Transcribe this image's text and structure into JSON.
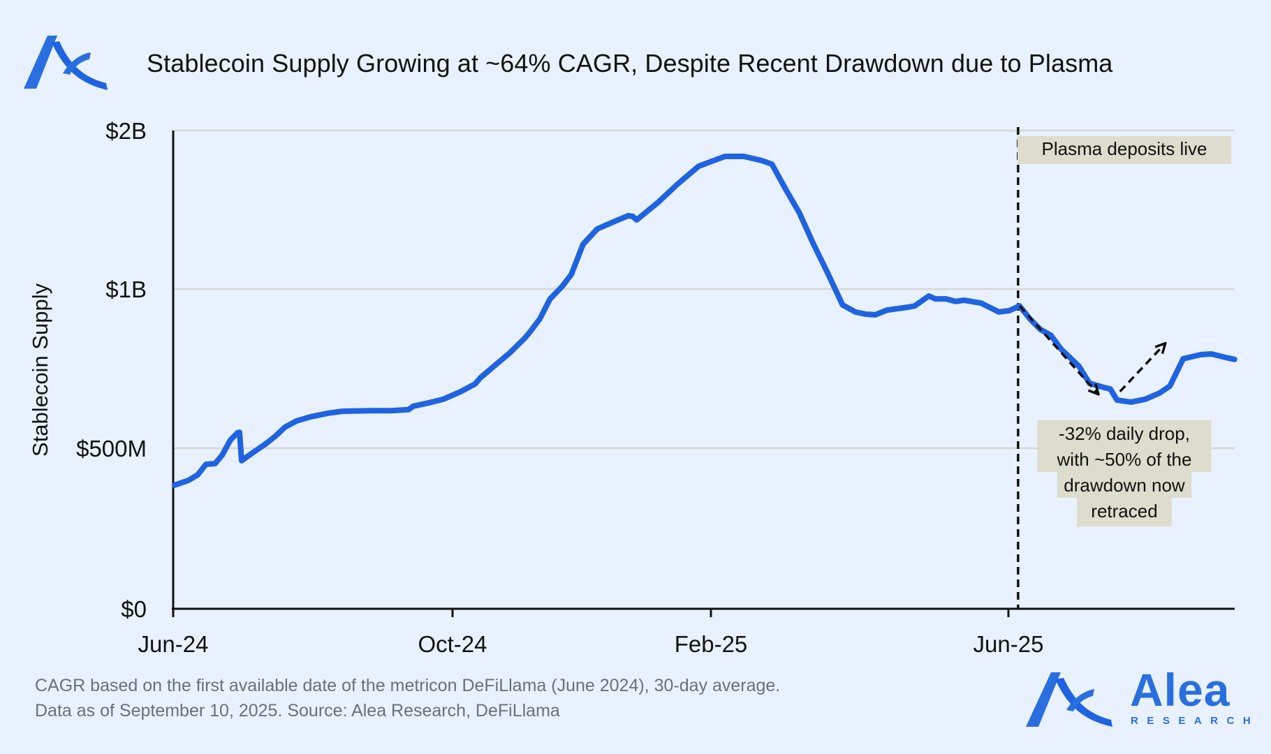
{
  "header": {
    "title": "Stablecoin Supply Growing at ~64% CAGR, Despite Recent Drawdown due to Plasma"
  },
  "footer": {
    "line1": "CAGR based on the first available date of the metricon DeFiLlama (June 2024), 30-day average.",
    "line2": "Data as of September 10, 2025. Source: Alea Research, DeFiLlama"
  },
  "brand": {
    "name": "Alea",
    "subtitle": "RESEARCH",
    "color": "#2a6fe0"
  },
  "colors": {
    "background": "#e8f1fd",
    "line": "#1f63e0",
    "annotation_bg": "#dedccd",
    "gridline": "#d6d6d6"
  },
  "chart_data": {
    "type": "line",
    "title": "Stablecoin Supply Growing at ~64% CAGR, Despite Recent Drawdown due to Plasma",
    "xlabel": "",
    "ylabel": "Stablecoin Supply",
    "x_unit": "months since Jun-2024",
    "y_unit": "USD millions",
    "x_ticks": [
      {
        "value": 0,
        "label": "Jun-24"
      },
      {
        "value": 4,
        "label": "Oct-24"
      },
      {
        "value": 8,
        "label": "Feb-25"
      },
      {
        "value": 12,
        "label": "Jun-25"
      }
    ],
    "y_ticks": [
      {
        "value": 0,
        "label": "$0"
      },
      {
        "value": 500,
        "label": "$500M"
      },
      {
        "value": 1000,
        "label": "$1B"
      },
      {
        "value": 2000,
        "label": "$2B"
      }
    ],
    "y_scale": "piecewise-equal-spaced-ticks",
    "xlim": [
      0,
      15.04
    ],
    "ylim": [
      0,
      2000
    ],
    "grid": "horizontal",
    "legend": "none",
    "series": [
      {
        "name": "Stablecoin Supply",
        "x": [
          0.02,
          0.22,
          0.35,
          0.47,
          0.6,
          0.7,
          0.82,
          0.92,
          0.95,
          0.98,
          1.12,
          1.32,
          1.47,
          1.6,
          1.77,
          1.97,
          2.22,
          2.42,
          2.82,
          3.12,
          3.37,
          3.44,
          3.67,
          3.87,
          4.13,
          4.35,
          4.43,
          4.62,
          4.89,
          5.12,
          5.21,
          5.35,
          5.51,
          5.7,
          5.84,
          6.02,
          6.24,
          6.51,
          6.72,
          6.79,
          6.85,
          7.18,
          7.48,
          7.81,
          8.19,
          8.44,
          8.68,
          8.82,
          9.0,
          9.19,
          9.38,
          9.57,
          9.77,
          9.94,
          10.08,
          10.21,
          10.37,
          10.65,
          10.74,
          10.93,
          11.02,
          11.16,
          11.29,
          11.4,
          11.63,
          11.87,
          12.01,
          12.15,
          12.29,
          12.43,
          12.57,
          12.71,
          12.95,
          13.09,
          13.28,
          13.37,
          13.46,
          13.65,
          13.84,
          14.03,
          14.17,
          14.35,
          14.59,
          14.73,
          14.92,
          15.04
        ],
        "values": [
          385,
          400,
          417,
          450,
          452,
          478,
          526,
          548,
          550,
          461,
          483,
          513,
          539,
          566,
          586,
          599,
          610,
          616,
          618,
          618,
          621,
          632,
          643,
          654,
          678,
          702,
          721,
          754,
          800,
          846,
          868,
          906,
          969,
          1018,
          1093,
          1282,
          1379,
          1427,
          1463,
          1458,
          1436,
          1546,
          1661,
          1775,
          1837,
          1837,
          1811,
          1788,
          1634,
          1480,
          1282,
          1101,
          950,
          928,
          921,
          919,
          934,
          943,
          947,
          978,
          969,
          969,
          961,
          965,
          956,
          928,
          932,
          947,
          906,
          873,
          855,
          811,
          757,
          704,
          691,
          686,
          651,
          645,
          654,
          673,
          695,
          781,
          794,
          796,
          785,
          779
        ]
      }
    ],
    "annotations": [
      {
        "type": "vline",
        "x": 12.13,
        "style": "dashed"
      },
      {
        "type": "label",
        "text_lines": [
          "Plasma deposits live"
        ]
      },
      {
        "type": "arrow",
        "from": [
          12.15,
          947
        ],
        "to": [
          13.2,
          672
        ],
        "style": "dashed"
      },
      {
        "type": "arrow",
        "from": [
          13.5,
          678
        ],
        "to": [
          14.1,
          827
        ],
        "style": "dashed"
      },
      {
        "type": "label",
        "text_lines": [
          "-32% daily drop,",
          "with ~50% of the",
          "drawdown now",
          "retraced"
        ]
      }
    ]
  }
}
